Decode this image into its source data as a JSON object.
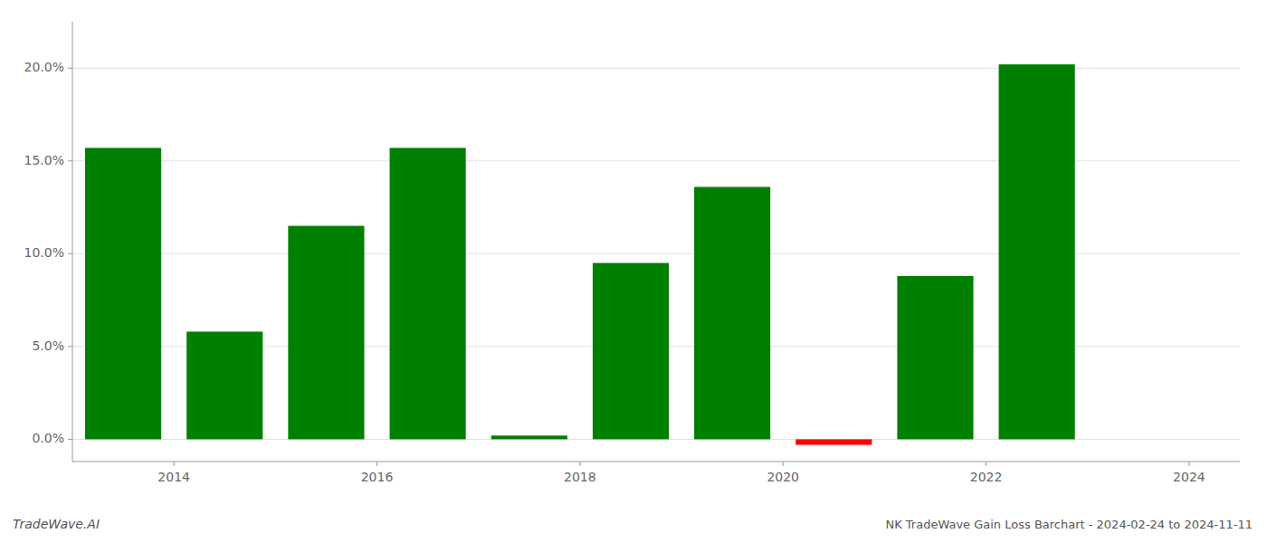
{
  "chart_data": {
    "type": "bar",
    "title": "NK TradeWave Gain Loss Barchart - 2024-02-24 to 2024-11-11",
    "annotations": [
      "TradeWave.AI"
    ],
    "x": [
      2013.5,
      2014.5,
      2015.5,
      2016.5,
      2017.5,
      2018.5,
      2019.5,
      2020.5,
      2021.5,
      2022.5,
      2023.5
    ],
    "values": [
      0.157,
      0.058,
      0.115,
      0.157,
      0.002,
      0.095,
      0.136,
      -0.003,
      0.088,
      0.202,
      0.0
    ],
    "colors": [
      "#008000",
      "#008000",
      "#008000",
      "#008000",
      "#008000",
      "#008000",
      "#008000",
      "#ff0000",
      "#008000",
      "#008000",
      "#008000"
    ],
    "xlim": [
      2013.0,
      2024.5
    ],
    "xticks": [
      2014,
      2016,
      2018,
      2020,
      2022,
      2024
    ],
    "ylim": [
      -0.012,
      0.225
    ],
    "yticks": [
      {
        "value": 0.0,
        "label": "0.0%"
      },
      {
        "value": 0.05,
        "label": "5.0%"
      },
      {
        "value": 0.1,
        "label": "10.0%"
      },
      {
        "value": 0.15,
        "label": "15.0%"
      },
      {
        "value": 0.2,
        "label": "20.0%"
      }
    ],
    "grid": true
  }
}
